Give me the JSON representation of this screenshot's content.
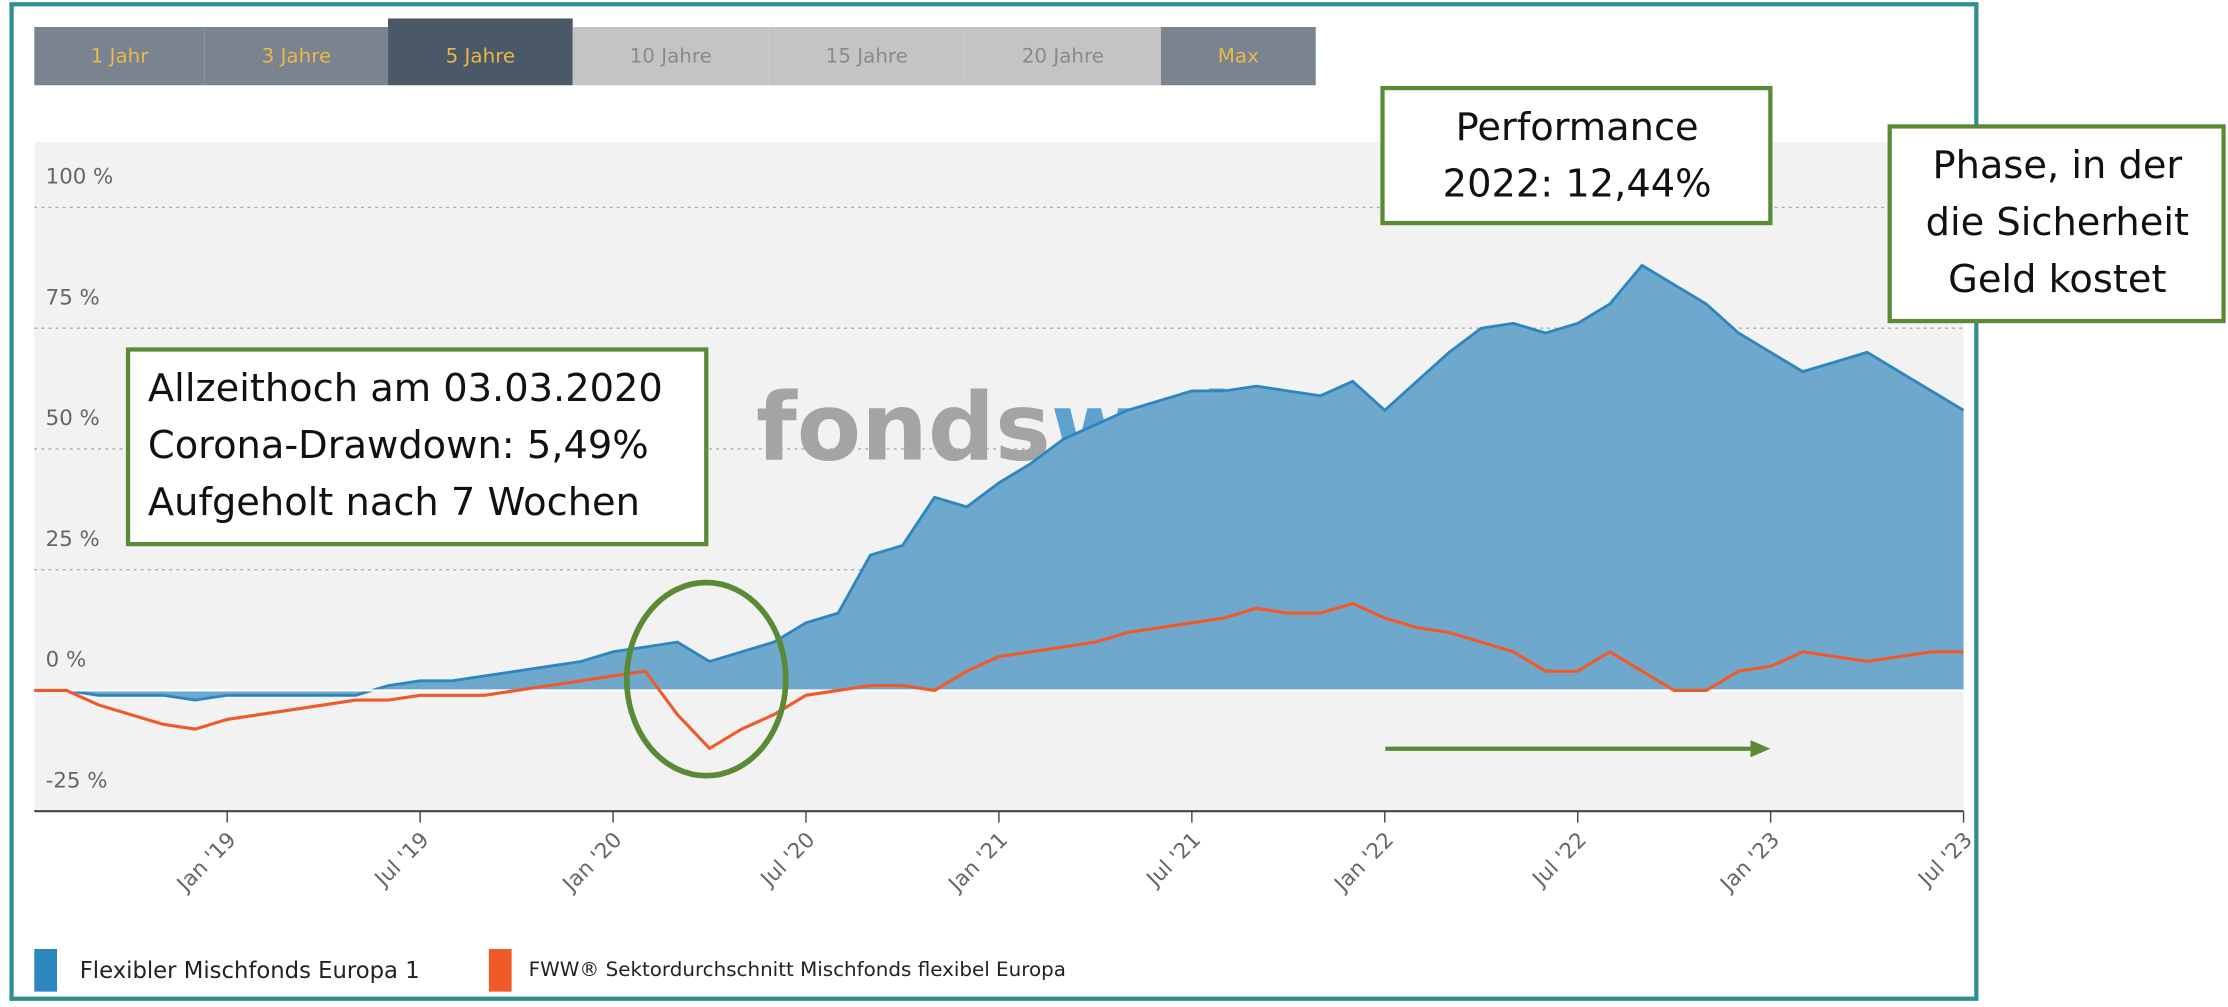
{
  "chart_data": {
    "type": "area-line",
    "buttons": [
      "1 Jahr",
      "3 Jahre",
      "5 Jahre",
      "10 Jahre",
      "15 Jahre",
      "20 Jahre",
      "Max"
    ],
    "watermark": [
      "fonds",
      "web"
    ],
    "x": [
      "2018-07",
      "2018-08",
      "2018-09",
      "2018-10",
      "2018-11",
      "2018-12",
      "2019-01",
      "2019-02",
      "2019-03",
      "2019-04",
      "2019-05",
      "2019-06",
      "2019-07",
      "2019-08",
      "2019-09",
      "2019-10",
      "2019-11",
      "2019-12",
      "2020-01",
      "2020-02",
      "2020-03",
      "2020-04",
      "2020-05",
      "2020-06",
      "2020-07",
      "2020-08",
      "2020-09",
      "2020-10",
      "2020-11",
      "2020-12",
      "2021-01",
      "2021-02",
      "2021-03",
      "2021-04",
      "2021-05",
      "2021-06",
      "2021-07",
      "2021-08",
      "2021-09",
      "2021-10",
      "2021-11",
      "2021-12",
      "2022-01",
      "2022-02",
      "2022-03",
      "2022-04",
      "2022-05",
      "2022-06",
      "2022-07",
      "2022-08",
      "2022-09",
      "2022-10",
      "2022-11",
      "2022-12",
      "2023-01",
      "2023-02",
      "2023-03",
      "2023-04",
      "2023-05",
      "2023-06",
      "2023-07"
    ],
    "series": [
      {
        "name": "Flexibler Mischfonds Europa 1",
        "color": "#2e86c1",
        "fill": "#6fa8cd",
        "values": [
          0,
          0,
          -1,
          -1,
          -1,
          -2,
          -1,
          -1,
          -1,
          -1,
          -1,
          1,
          2,
          2,
          3,
          4,
          5,
          6,
          8,
          9,
          10,
          6,
          8,
          10,
          14,
          16,
          28,
          30,
          40,
          38,
          43,
          47,
          52,
          55,
          58,
          60,
          62,
          62,
          63,
          62,
          61,
          64,
          58,
          64,
          70,
          75,
          76,
          74,
          76,
          80,
          88,
          84,
          80,
          74,
          70,
          66,
          68,
          70,
          66,
          62,
          58
        ]
      },
      {
        "name": "FWW® Sektordurchschnitt Mischfonds flexibel Europa",
        "color": "#f05a28",
        "values": [
          0,
          0,
          -3,
          -5,
          -7,
          -8,
          -6,
          -5,
          -4,
          -3,
          -2,
          -2,
          -1,
          -1,
          -1,
          0,
          1,
          2,
          3,
          4,
          -5,
          -12,
          -8,
          -5,
          -1,
          0,
          1,
          1,
          0,
          4,
          7,
          8,
          9,
          10,
          12,
          13,
          14,
          15,
          17,
          16,
          16,
          18,
          15,
          13,
          12,
          10,
          8,
          4,
          4,
          8,
          4,
          0,
          0,
          4,
          5,
          8,
          7,
          6,
          7,
          8,
          8
        ]
      }
    ],
    "ylim": [
      -25,
      115
    ],
    "yticks": [
      {
        "value": -25,
        "label": "-25 %"
      },
      {
        "value": 0,
        "label": "0 %"
      },
      {
        "value": 25,
        "label": "25 %"
      },
      {
        "value": 50,
        "label": "50 %"
      },
      {
        "value": 75,
        "label": "75 %"
      },
      {
        "value": 100,
        "label": "100 %"
      }
    ],
    "xticks": [
      {
        "value": "2019-01",
        "label": "Jan '19"
      },
      {
        "value": "2019-07",
        "label": "Jul '19"
      },
      {
        "value": "2020-01",
        "label": "Jan '20"
      },
      {
        "value": "2020-07",
        "label": "Jul '20"
      },
      {
        "value": "2021-01",
        "label": "Jan '21"
      },
      {
        "value": "2021-07",
        "label": "Jul '21"
      },
      {
        "value": "2022-01",
        "label": "Jan '22"
      },
      {
        "value": "2022-07",
        "label": "Jul '22"
      },
      {
        "value": "2023-01",
        "label": "Jan '23"
      },
      {
        "value": "2023-07",
        "label": "Jul '23"
      }
    ],
    "grid": true,
    "annotations": [
      [
        "Allzeithoch am 03.03.2020",
        "Corona-Drawdown: 5,49%",
        "Aufgeholt nach 7 Wochen"
      ],
      [
        "Performance",
        "2022: 12,44%"
      ],
      [
        "Phase, in der",
        "die Sicherheit",
        "Geld kostet"
      ]
    ]
  }
}
